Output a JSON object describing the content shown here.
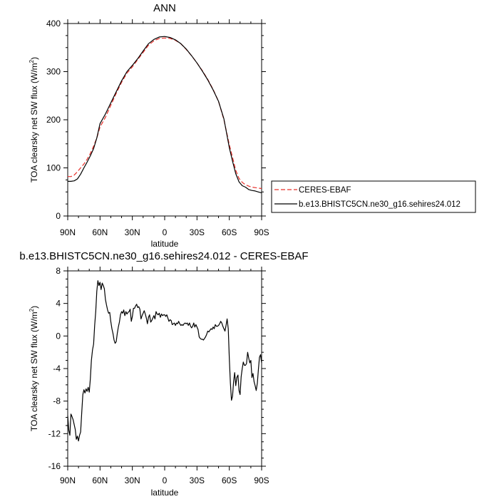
{
  "chart_data": [
    {
      "type": "line",
      "title": "ANN",
      "xlabel": "latitude",
      "ylabel": "TOA clearsky net SW flux (W/m²)",
      "ylabel_main": "TOA clearsky net SW flux (W/m",
      "ylabel_sup": "2",
      "ylabel_end": ")",
      "xlim": [
        -90,
        90
      ],
      "ylim": [
        0,
        400
      ],
      "x_ticks": [
        -90,
        -60,
        -30,
        0,
        30,
        60,
        90
      ],
      "x_tick_labels": [
        "90N",
        "60N",
        "30N",
        "0",
        "30S",
        "60S",
        "90S"
      ],
      "y_ticks": [
        0,
        100,
        200,
        300,
        400
      ],
      "y_tick_labels": [
        "0",
        "100",
        "200",
        "300",
        "400"
      ],
      "legend_placement": "right",
      "series": [
        {
          "name": "CERES-EBAF",
          "color": "#e8302a",
          "dash": "dashed",
          "x": [
            -90,
            -87,
            -84,
            -81,
            -78,
            -75,
            -72,
            -69,
            -66,
            -63,
            -60,
            -55,
            -50,
            -45,
            -40,
            -35,
            -30,
            -25,
            -20,
            -15,
            -10,
            -5,
            0,
            5,
            10,
            15,
            20,
            25,
            30,
            35,
            40,
            45,
            50,
            55,
            60,
            63,
            66,
            69,
            72,
            75,
            78,
            81,
            84,
            87,
            90
          ],
          "y": [
            82,
            82,
            85,
            92,
            100,
            108,
            118,
            130,
            145,
            162,
            185,
            205,
            230,
            255,
            278,
            297,
            310,
            325,
            340,
            355,
            364,
            369,
            370,
            369,
            365,
            358,
            346,
            333,
            318,
            302,
            284,
            263,
            238,
            200,
            148,
            122,
            95,
            78,
            70,
            65,
            62,
            60,
            59,
            58,
            57
          ]
        },
        {
          "name": "b.e13.BHISTC5CN.ne30_g16.sehires24.012",
          "color": "#000000",
          "dash": "solid",
          "x": [
            -90,
            -87,
            -84,
            -81,
            -78,
            -75,
            -72,
            -69,
            -66,
            -63,
            -60,
            -55,
            -50,
            -45,
            -40,
            -35,
            -30,
            -25,
            -20,
            -15,
            -10,
            -5,
            0,
            5,
            10,
            15,
            20,
            25,
            30,
            35,
            40,
            45,
            50,
            55,
            60,
            63,
            66,
            69,
            72,
            75,
            78,
            81,
            84,
            87,
            90
          ],
          "y": [
            72,
            72,
            73,
            77,
            87,
            100,
            112,
            125,
            140,
            162,
            192,
            212,
            235,
            258,
            281,
            300,
            313,
            327,
            343,
            358,
            367,
            372,
            373,
            371,
            366,
            358,
            347,
            333,
            318,
            301,
            283,
            262,
            238,
            202,
            142,
            114,
            88,
            71,
            63,
            60,
            55,
            53,
            52,
            50,
            48
          ]
        }
      ]
    },
    {
      "type": "line",
      "title": "b.e13.BHISTC5CN.ne30_g16.sehires24.012 - CERES-EBAF",
      "xlabel": "latitude",
      "ylabel": "TOA clearsky net SW flux (W/m²)",
      "ylabel_main": "TOA clearsky net SW flux (W/m",
      "ylabel_sup": "2",
      "ylabel_end": ")",
      "xlim": [
        -90,
        90
      ],
      "ylim": [
        -16,
        8
      ],
      "x_ticks": [
        -90,
        -60,
        -30,
        0,
        30,
        60,
        90
      ],
      "x_tick_labels": [
        "90N",
        "60N",
        "30N",
        "0",
        "30S",
        "60S",
        "90S"
      ],
      "y_ticks": [
        -16,
        -12,
        -8,
        -4,
        0,
        4,
        8
      ],
      "y_tick_labels": [
        "-16",
        "-12",
        "-8",
        "-4",
        "0",
        "4",
        "8"
      ],
      "series": [
        {
          "color": "#000000",
          "dash": "solid",
          "x": [
            -90,
            -89,
            -88,
            -87,
            -86,
            -85,
            -84,
            -83,
            -82,
            -81,
            -80,
            -79,
            -78,
            -77,
            -76,
            -75,
            -74,
            -73,
            -72,
            -71,
            -70,
            -69,
            -68,
            -67,
            -66,
            -65,
            -64,
            -63,
            -62,
            -61,
            -60,
            -59,
            -58,
            -57,
            -56,
            -55,
            -54,
            -53,
            -52,
            -51,
            -50,
            -49,
            -48,
            -47,
            -46,
            -45,
            -44,
            -43,
            -42,
            -41,
            -40,
            -39,
            -38,
            -37,
            -36,
            -35,
            -34,
            -33,
            -32,
            -31,
            -30,
            -29,
            -28,
            -27,
            -26,
            -25,
            -24,
            -23,
            -22,
            -21,
            -20,
            -19,
            -18,
            -17,
            -16,
            -15,
            -14,
            -13,
            -12,
            -11,
            -10,
            -9,
            -8,
            -7,
            -6,
            -5,
            -4,
            -3,
            -2,
            -1,
            0,
            1,
            2,
            3,
            4,
            5,
            6,
            7,
            8,
            9,
            10,
            11,
            12,
            13,
            14,
            15,
            16,
            17,
            18,
            19,
            20,
            21,
            22,
            23,
            24,
            25,
            26,
            27,
            28,
            29,
            30,
            31,
            32,
            33,
            34,
            35,
            36,
            37,
            38,
            39,
            40,
            41,
            42,
            43,
            44,
            45,
            46,
            47,
            48,
            49,
            50,
            51,
            52,
            53,
            54,
            55,
            56,
            57,
            58,
            59,
            60,
            61,
            62,
            63,
            64,
            65,
            66,
            67,
            68,
            69,
            70,
            71,
            72,
            73,
            74,
            75,
            76,
            77,
            78,
            79,
            80,
            81,
            82,
            83,
            84,
            85,
            86,
            87,
            88,
            89,
            90
          ],
          "y": [
            -9.8,
            -11.6,
            -12.2,
            -9.6,
            -9.9,
            -10.3,
            -10.9,
            -11.5,
            -12.7,
            -12.3,
            -12.9,
            -12.2,
            -11.8,
            -9.5,
            -7.2,
            -6.6,
            -7.0,
            -6.5,
            -6.8,
            -6.3,
            -6.9,
            -5.3,
            -3.0,
            -1.7,
            -1.0,
            1.3,
            3.0,
            5.5,
            6.8,
            6.2,
            6.6,
            5.7,
            6.5,
            6.2,
            5.8,
            4.5,
            3.8,
            3.2,
            2.8,
            2.9,
            1.8,
            0.9,
            0.3,
            -0.5,
            -0.9,
            -0.7,
            0.3,
            1.1,
            1.7,
            2.6,
            3.0,
            2.8,
            3.2,
            2.5,
            3.0,
            2.7,
            2.9,
            3.0,
            3.3,
            1.8,
            2.4,
            3.4,
            3.4,
            3.7,
            3.9,
            3.5,
            3.6,
            3.3,
            2.1,
            2.5,
            2.8,
            3.1,
            2.7,
            2.2,
            1.5,
            2.3,
            2.6,
            1.7,
            1.9,
            2.2,
            2.5,
            2.1,
            3.0,
            2.7,
            2.6,
            2.8,
            2.3,
            2.7,
            2.5,
            2.6,
            2.6,
            2.4,
            2.6,
            2.2,
            1.8,
            2.0,
            1.9,
            1.4,
            1.5,
            1.6,
            1.3,
            1.6,
            1.5,
            1.8,
            1.5,
            1.3,
            1.4,
            1.3,
            1.5,
            1.6,
            1.5,
            1.6,
            1.3,
            1.6,
            1.2,
            1.0,
            1.2,
            1.6,
            1.1,
            1.4,
            1.1,
            0.8,
            -0.1,
            -0.3,
            -0.4,
            -0.4,
            -0.5,
            -0.3,
            -0.1,
            0.2,
            0.6,
            0.5,
            0.7,
            0.9,
            0.8,
            1.1,
            0.9,
            1.4,
            1.2,
            1.2,
            1.3,
            1.5,
            1.8,
            1.6,
            1.2,
            0.9,
            0.6,
            1.3,
            2.1,
            0.9,
            -2.8,
            -5.8,
            -7.9,
            -7.4,
            -5.6,
            -4.5,
            -6.1,
            -5.1,
            -4.8,
            -6.7,
            -7.2,
            -5.0,
            -4.0,
            -3.2,
            -3.6,
            -3.6,
            -3.4,
            -2.0,
            -2.7,
            -3.3,
            -3.0,
            -5.1,
            -4.6,
            -5.6,
            -6.1,
            -6.7,
            -5.8,
            -4.1,
            -2.6,
            -2.3,
            -3.3
          ]
        }
      ]
    }
  ]
}
